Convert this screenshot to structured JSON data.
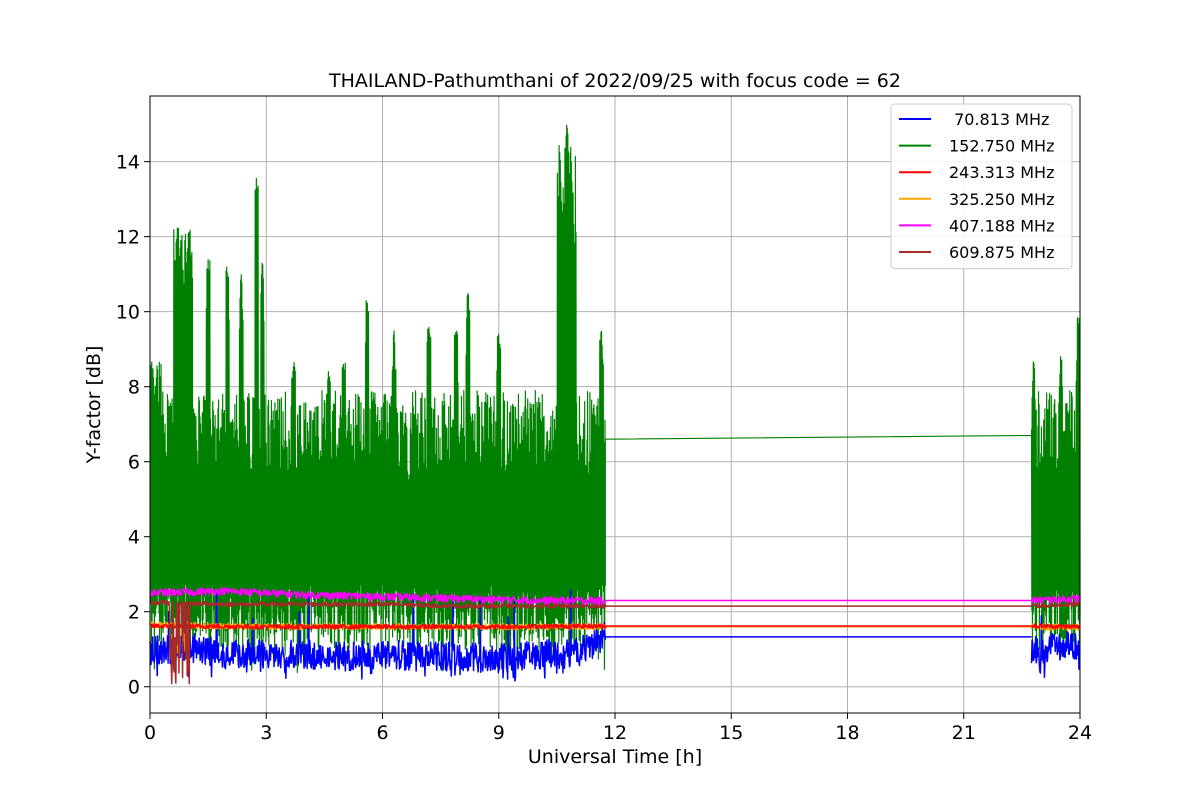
{
  "chart_data": {
    "type": "line",
    "title": "THAILAND-Pathumthani of 2022/09/25 with focus code = 62",
    "xlabel": "Universal Time [h]",
    "ylabel": "Y-factor [dB]",
    "xlim": [
      0,
      24
    ],
    "ylim": [
      -0.7,
      15.75
    ],
    "xticks": [
      0,
      3,
      6,
      9,
      12,
      15,
      18,
      21,
      24
    ],
    "yticks": [
      0,
      2,
      4,
      6,
      8,
      10,
      12,
      14
    ],
    "grid": true,
    "legend_position": "top-right",
    "gap": [
      11.75,
      22.75
    ],
    "series": [
      {
        "name": " 70.813 MHz",
        "color": "#0000ff",
        "base": 0.85,
        "noise": 0.45,
        "dips": [
          [
            5.7,
            0.25
          ],
          [
            9.4,
            0.15
          ],
          [
            23.0,
            0.3
          ]
        ],
        "gap_value": 1.33,
        "x": [
          0,
          1,
          2,
          3,
          4,
          5,
          6,
          7,
          8,
          9,
          10,
          11,
          11.75,
          22.75,
          24
        ],
        "y": [
          0.9,
          1.0,
          0.85,
          0.8,
          0.8,
          0.75,
          0.8,
          0.75,
          0.75,
          0.7,
          0.8,
          0.85,
          1.3,
          0.9,
          1.1
        ]
      },
      {
        "name": "152.750 MHz",
        "color": "#008000",
        "spikes": [
          [
            0.7,
            12.25
          ],
          [
            1.0,
            12.2
          ],
          [
            1.5,
            11.4
          ],
          [
            2.0,
            11.2
          ],
          [
            2.35,
            11.0
          ],
          [
            2.75,
            13.6
          ],
          [
            2.9,
            11.3
          ],
          [
            3.7,
            8.7
          ],
          [
            4.6,
            8.5
          ],
          [
            5.0,
            8.8
          ],
          [
            5.6,
            10.4
          ],
          [
            6.3,
            9.5
          ],
          [
            7.2,
            9.6
          ],
          [
            7.9,
            9.5
          ],
          [
            8.2,
            10.5
          ],
          [
            9.0,
            9.4
          ],
          [
            10.6,
            13.5
          ],
          [
            10.75,
            15.0
          ],
          [
            10.85,
            14.4
          ],
          [
            11.65,
            9.5
          ],
          [
            22.8,
            8.7
          ],
          [
            23.5,
            8.8
          ],
          [
            23.95,
            9.9
          ]
        ],
        "gap_value_start": 6.6,
        "gap_value_end": 6.7,
        "x": [
          0,
          1,
          2,
          3,
          4,
          5,
          6,
          7,
          8,
          9,
          10,
          11,
          11.75,
          22.75,
          24
        ],
        "y": [
          5.0,
          5.0,
          5.0,
          4.8,
          4.8,
          4.8,
          4.8,
          4.8,
          4.8,
          4.8,
          4.8,
          5.0,
          6.6,
          6.7,
          5.5
        ]
      },
      {
        "name": "243.313 MHz",
        "color": "#ff0000",
        "base": 1.6,
        "noise": 0.06,
        "gap_value": 1.62,
        "x": [
          0,
          3,
          6,
          9,
          11.75,
          22.75,
          24
        ],
        "y": [
          1.62,
          1.6,
          1.6,
          1.6,
          1.62,
          1.62,
          1.6
        ]
      },
      {
        "name": "325.250 MHz",
        "color": "#ffa500",
        "base": 1.6,
        "noise": 0.08,
        "dips": [
          [
            0.75,
            0.8
          ],
          [
            0.9,
            0.9
          ]
        ],
        "gap_value": 1.6,
        "x": [
          0,
          3,
          6,
          9,
          11.75,
          22.75,
          24
        ],
        "y": [
          1.65,
          1.6,
          1.6,
          1.6,
          1.6,
          1.6,
          1.58
        ]
      },
      {
        "name": "407.188 MHz",
        "color": "#ff00ff",
        "base": 2.45,
        "noise": 0.1,
        "gap_value": 2.3,
        "x": [
          0,
          2,
          4,
          6,
          8,
          10,
          11.75,
          22.75,
          24
        ],
        "y": [
          2.5,
          2.55,
          2.45,
          2.4,
          2.35,
          2.3,
          2.3,
          2.3,
          2.35
        ]
      },
      {
        "name": "609.875 MHz",
        "color": "#a52a2a",
        "base": 2.2,
        "noise": 0.06,
        "dips": [
          [
            0.55,
            0.0
          ],
          [
            0.65,
            0.3
          ],
          [
            0.8,
            0.5
          ],
          [
            0.95,
            0.1
          ],
          [
            1.0,
            0.05
          ]
        ],
        "gap_value": 2.15,
        "x": [
          0,
          2,
          4,
          6,
          8,
          10,
          11.75,
          22.75,
          24
        ],
        "y": [
          2.25,
          2.2,
          2.2,
          2.2,
          2.15,
          2.15,
          2.15,
          2.15,
          2.2
        ]
      }
    ]
  }
}
